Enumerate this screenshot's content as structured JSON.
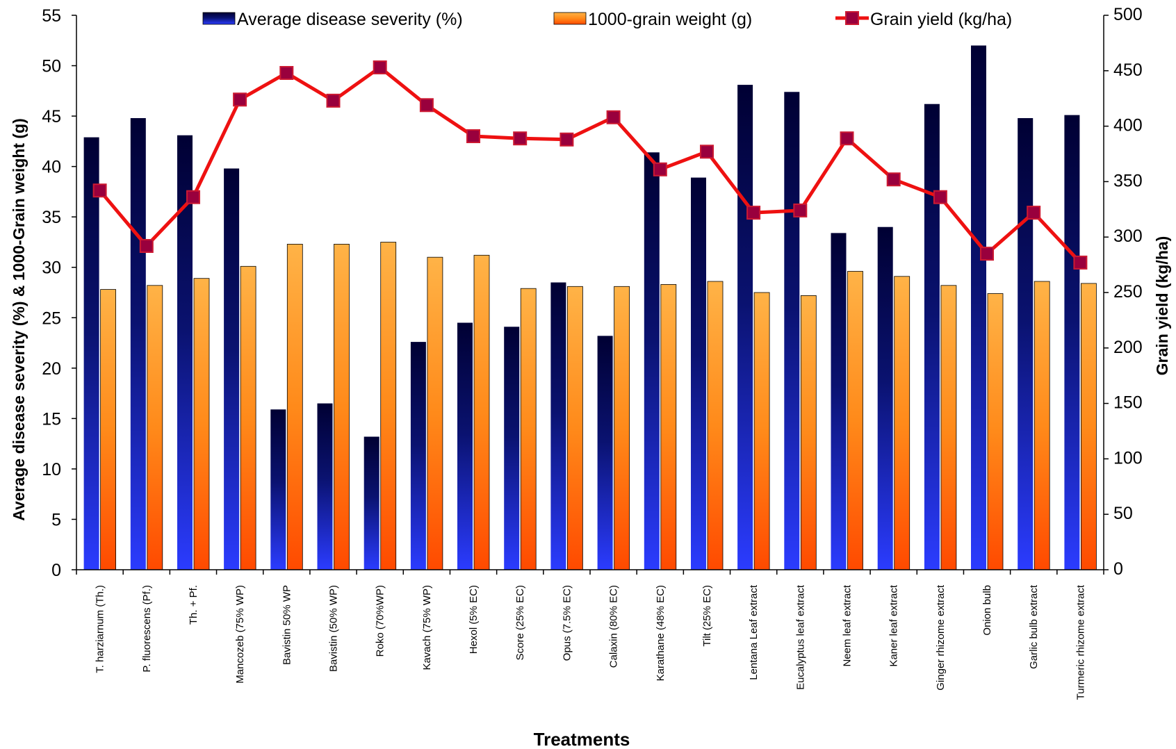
{
  "chart_data": {
    "type": "bar",
    "categories": [
      "T. harziarnum (Th.)",
      "P. fluorescens (Pf.)",
      "Th. + Pf.",
      "Mancozeb (75% WP)",
      "Bavistin 50% WP",
      "Bavistin (50% WP)",
      "Roko (70%WP)",
      "Kavach (75% WP)",
      "Hexol (5% EC)",
      "Score (25% EC)",
      "Opus (7.5% EC)",
      "Calaxin (80% EC)",
      "Karathane (48% EC)",
      "Tilt (25% EC)",
      "Lentana Leaf extract",
      "Eucalyptus leaf extract",
      "Neem leaf extract",
      "Kaner leaf extract",
      "Ginger rhizome extract",
      "Onion bulb",
      "Garlic bulb extract",
      "Turmeric rhizome extract"
    ],
    "series": [
      {
        "name": "Average disease severity (%)",
        "type": "bar",
        "axis": "left",
        "values": [
          42.9,
          44.8,
          43.1,
          39.8,
          15.9,
          16.5,
          13.2,
          22.6,
          24.5,
          24.1,
          28.5,
          23.2,
          41.4,
          38.9,
          48.1,
          47.4,
          33.4,
          34.0,
          46.2,
          52.0,
          44.8,
          45.1
        ]
      },
      {
        "name": "1000-grain weight (g)",
        "type": "bar",
        "axis": "left",
        "values": [
          27.8,
          28.2,
          28.9,
          30.1,
          32.3,
          32.3,
          32.5,
          31.0,
          31.2,
          27.9,
          28.1,
          28.1,
          28.3,
          28.6,
          27.5,
          27.2,
          29.6,
          29.1,
          28.2,
          27.4,
          28.6,
          28.4
        ]
      },
      {
        "name": "Grain yield (kg/ha)",
        "type": "line",
        "axis": "right",
        "values": [
          342,
          292,
          336,
          424,
          448,
          423,
          453,
          419,
          391,
          389,
          388,
          408,
          361,
          377,
          322,
          324,
          389,
          352,
          336,
          285,
          322,
          277
        ]
      }
    ],
    "xlabel": "Treatments",
    "ylabel": "Average disease  severity (%)  & 1000-Grain weight (g)",
    "y2label": "Grain yield (kg/ha)",
    "ylim": [
      0,
      55
    ],
    "y2lim": [
      0,
      500
    ],
    "yticks": [
      0,
      5,
      10,
      15,
      20,
      25,
      30,
      35,
      40,
      45,
      50,
      55
    ],
    "y2ticks": [
      0,
      50,
      100,
      150,
      200,
      250,
      300,
      350,
      400,
      450,
      500
    ],
    "grid": false,
    "legend_position": "top",
    "colors": {
      "severity_top": "#000033",
      "severity_bottom": "#2b3cff",
      "weight_top": "#ffb347",
      "weight_bottom": "#ff4a00",
      "yield_line": "#ee1111",
      "yield_marker": "#99003d"
    }
  }
}
